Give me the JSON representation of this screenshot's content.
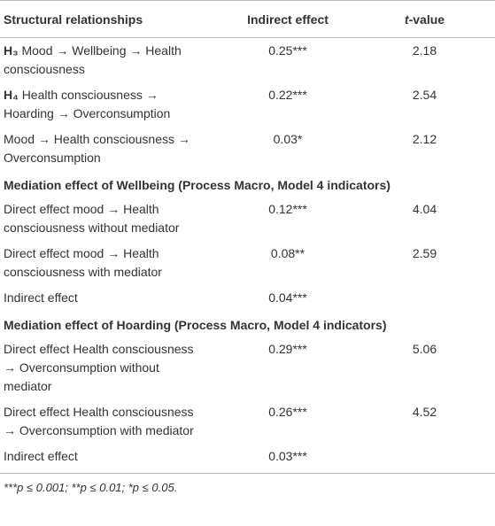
{
  "table": {
    "header": [
      {
        "text": "Structural relationships"
      },
      {
        "text": "Indirect effect"
      },
      {
        "italic": "t",
        "rest": "-value"
      }
    ],
    "rows": [
      {
        "prefix": "H₃",
        "label": "Mood →  Wellbeing → Health consciousness",
        "effect": "0.25***",
        "t": 2.18
      },
      {
        "prefix": "H₄",
        "label": "Health consciousness → Hoarding →  Overconsumption",
        "effect": "0.22***",
        "t": 2.54
      },
      {
        "label": "Mood →  Health consciousness →  Overconsumption",
        "effect": "0.03*",
        "t": 2.12
      },
      {
        "section": "Mediation effect of Wellbeing (Process Macro, Model 4 indicators)"
      },
      {
        "label": "Direct effect mood →  Health consciousness without mediator",
        "effect": "0.12***",
        "t": 4.04
      },
      {
        "label": "Direct effect mood →  Health consciousness with mediator",
        "effect": "0.08**",
        "t": 2.59
      },
      {
        "label": "Indirect effect",
        "effect": "0.04***",
        "t": null
      },
      {
        "section": "Mediation effect of Hoarding (Process Macro, Model 4 indicators)"
      },
      {
        "label": "Direct effect Health consciousness → Overconsumption without mediator",
        "effect": "0.29***",
        "t": 5.06
      },
      {
        "label": "Direct effect Health consciousness → Overconsumption with mediator",
        "effect": "0.26***",
        "t": 4.52
      },
      {
        "label": "Indirect effect",
        "effect": "0.03***",
        "t": null
      }
    ],
    "footnote": "***p ≤ 0.001; **p ≤ 0.01; *p ≤ 0.05."
  }
}
